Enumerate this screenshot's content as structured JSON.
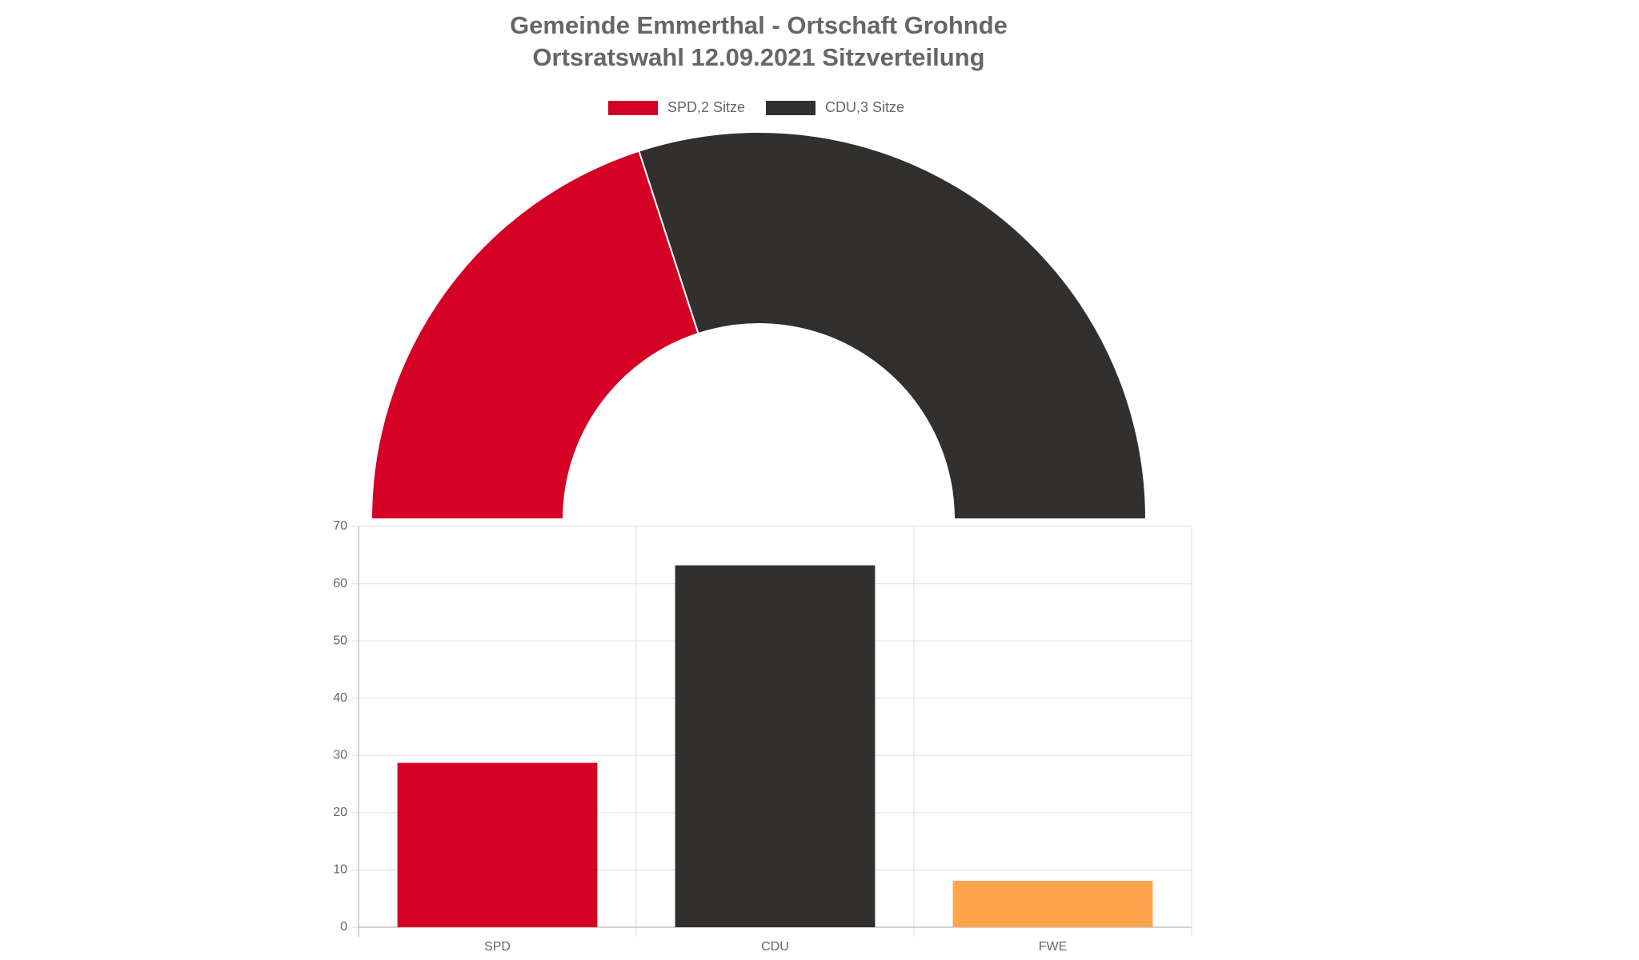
{
  "chart_data": [
    {
      "type": "doughnut",
      "title": [
        "Gemeinde Emmerthal - Ortschaft Grohnde",
        "Ortsratswahl 12.09.2021 Sitzverteilung"
      ],
      "categories": [
        "SPD,2 Sitze",
        "CDU,3 Sitze"
      ],
      "values": [
        2,
        3
      ],
      "colors": [
        "#d50026",
        "#32302e"
      ],
      "circumference": 180,
      "legend": "top"
    },
    {
      "type": "bar",
      "categories": [
        "SPD",
        "CDU",
        "FWE"
      ],
      "values": [
        28.7,
        63.2,
        8.1
      ],
      "colors": [
        "#d50026",
        "#32302e",
        "#ffa64d"
      ],
      "ylim": [
        0,
        70
      ],
      "yticks": [
        0,
        10,
        20,
        30,
        40,
        50,
        60,
        70
      ],
      "grid": true
    }
  ]
}
